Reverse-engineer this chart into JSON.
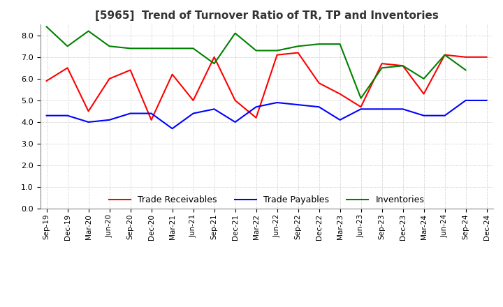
{
  "title": "[5965]  Trend of Turnover Ratio of TR, TP and Inventories",
  "x_labels": [
    "Sep-19",
    "Dec-19",
    "Mar-20",
    "Jun-20",
    "Sep-20",
    "Dec-20",
    "Mar-21",
    "Jun-21",
    "Sep-21",
    "Dec-21",
    "Mar-22",
    "Jun-22",
    "Sep-22",
    "Dec-22",
    "Mar-23",
    "Jun-23",
    "Sep-23",
    "Dec-23",
    "Mar-24",
    "Jun-24",
    "Sep-24",
    "Dec-24"
  ],
  "trade_receivables": [
    5.9,
    6.5,
    4.5,
    6.0,
    6.4,
    4.1,
    6.2,
    5.0,
    7.0,
    5.0,
    4.2,
    7.1,
    7.2,
    5.8,
    5.3,
    4.7,
    6.7,
    6.6,
    5.3,
    7.1,
    7.0,
    7.0
  ],
  "trade_payables": [
    4.3,
    4.3,
    4.0,
    4.1,
    4.4,
    4.4,
    3.7,
    4.4,
    4.6,
    4.0,
    4.7,
    4.9,
    4.8,
    4.7,
    4.1,
    4.6,
    4.6,
    4.6,
    4.3,
    4.3,
    5.0,
    5.0
  ],
  "inventories": [
    8.4,
    7.5,
    8.2,
    7.5,
    7.4,
    7.4,
    7.4,
    7.4,
    6.7,
    8.1,
    7.3,
    7.3,
    7.5,
    7.6,
    7.6,
    5.1,
    6.5,
    6.6,
    6.0,
    7.1,
    6.4,
    null
  ],
  "tr_color": "#ff0000",
  "tp_color": "#0000ff",
  "inv_color": "#008000",
  "ylim": [
    0,
    8.5
  ],
  "yticks": [
    0.0,
    1.0,
    2.0,
    3.0,
    4.0,
    5.0,
    6.0,
    7.0,
    8.0
  ],
  "legend_labels": [
    "Trade Receivables",
    "Trade Payables",
    "Inventories"
  ],
  "background_color": "#ffffff",
  "grid_color": "#aaaaaa"
}
